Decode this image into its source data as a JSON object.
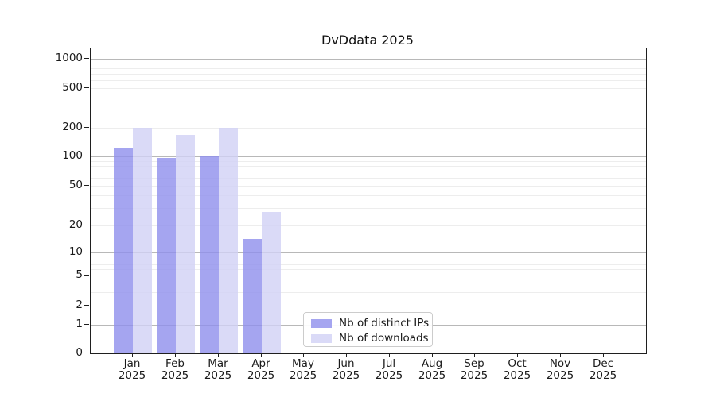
{
  "title": "DvDdata 2025",
  "chart_data": {
    "type": "bar",
    "title": "DvDdata 2025",
    "categories": [
      "Jan",
      "Feb",
      "Mar",
      "Apr",
      "May",
      "Jun",
      "Jul",
      "Aug",
      "Sep",
      "Oct",
      "Nov",
      "Dec"
    ],
    "year": "2025",
    "series": [
      {
        "name": "Nb of distinct IPs",
        "color": "#a5a5f0",
        "values": [
          123,
          96,
          100,
          14,
          0,
          0,
          0,
          0,
          0,
          0,
          0,
          0
        ]
      },
      {
        "name": "Nb of downloads",
        "color": "#dadaf7",
        "values": [
          200,
          167,
          200,
          27,
          0,
          0,
          0,
          0,
          0,
          0,
          0,
          0
        ]
      }
    ],
    "xlabel": "",
    "ylabel": "",
    "y_axis": {
      "scale": "log-like with linear zero region",
      "tick_values": [
        0,
        1,
        2,
        5,
        10,
        20,
        50,
        100,
        200,
        500,
        1000
      ],
      "tick_labels": [
        "0",
        "1",
        "2",
        "5",
        "10",
        "20",
        "50",
        "100",
        "200",
        "500",
        "1000"
      ],
      "ylim": [
        0,
        1180
      ]
    },
    "grid": {
      "major_on": true,
      "minor_on": true,
      "major_color": "#b8b8b8",
      "minor_color": "#ededed"
    },
    "legend": {
      "position": "lower center",
      "entries": [
        "Nb of distinct IPs",
        "Nb of downloads"
      ]
    }
  },
  "colors": {
    "bar_ips": "#a5a5f0",
    "bar_downloads": "#dadaf7",
    "spine": "#1f1f1f",
    "grid_major": "#b8b8b8",
    "grid_minor": "#ededed",
    "text": "#1a1a1a"
  }
}
